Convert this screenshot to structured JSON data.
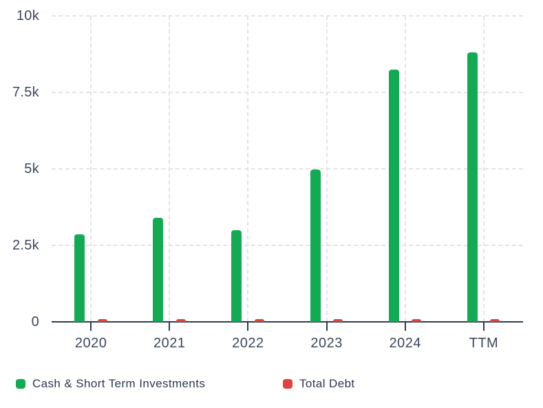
{
  "chart_data": {
    "type": "bar",
    "title": "",
    "xlabel": "",
    "ylabel": "",
    "categories": [
      "2020",
      "2021",
      "2022",
      "2023",
      "2024",
      "TTM"
    ],
    "series": [
      {
        "name": "Cash & Short Term Investments",
        "color": "#12ab53",
        "values": [
          2850,
          3400,
          2990,
          4975,
          8250,
          8800
        ]
      },
      {
        "name": "Total Debt",
        "color": "#df453c",
        "values": [
          100,
          100,
          100,
          100,
          100,
          100
        ]
      }
    ],
    "ylim": [
      0,
      10000
    ],
    "yticks": [
      {
        "value": 0,
        "label": "0"
      },
      {
        "value": 2500,
        "label": "2.5k"
      },
      {
        "value": 5000,
        "label": "5k"
      },
      {
        "value": 7500,
        "label": "7.5k"
      },
      {
        "value": 10000,
        "label": "10k"
      }
    ],
    "grid": "dashed",
    "legend_position": "bottom"
  },
  "colors": {
    "background": "#ffffff",
    "axis": "#2d3a52",
    "grid": "#e3e3e3",
    "tick_label": "#3c465c",
    "legend_text": "#2c3752"
  }
}
